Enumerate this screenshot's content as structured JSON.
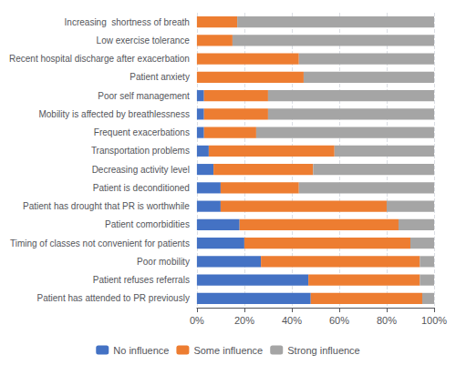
{
  "chart_data": {
    "type": "bar",
    "orientation": "horizontal",
    "stacked": true,
    "categories": [
      "Increasing  shortness of breath",
      "Low exercise tolerance",
      "Recent hospital discharge after exacerbation",
      "Patient anxiety",
      "Poor self management",
      "Mobility is affected by breathlessness",
      "Frequent exacerbations",
      "Transportation problems",
      "Decreasing activity level",
      "Patient is deconditioned",
      "Patient has drought that PR is worthwhile",
      "Patient comorbidities",
      "Timing of classes not convenient for patients",
      "Poor mobility",
      "Patient refuses referrals",
      "Patient has attended to PR previously"
    ],
    "series": [
      {
        "name": "No influence",
        "color": "#4472c4",
        "values": [
          0,
          0,
          0,
          0,
          3,
          3,
          3,
          5,
          7,
          10,
          10,
          18,
          20,
          27,
          47,
          48
        ]
      },
      {
        "name": "Some influence",
        "color": "#ed7d31",
        "values": [
          17,
          15,
          43,
          45,
          27,
          27,
          22,
          53,
          42,
          33,
          70,
          67,
          70,
          67,
          47,
          47
        ]
      },
      {
        "name": "Strong influence",
        "color": "#a5a5a5",
        "values": [
          83,
          85,
          57,
          55,
          70,
          70,
          75,
          42,
          51,
          57,
          20,
          15,
          10,
          6,
          6,
          5
        ]
      }
    ],
    "xlim": [
      0,
      100
    ],
    "xticks": [
      {
        "value": 0,
        "label": "0%"
      },
      {
        "value": 20,
        "label": "20%"
      },
      {
        "value": 40,
        "label": "40%"
      },
      {
        "value": 60,
        "label": "60%"
      },
      {
        "value": 80,
        "label": "80%"
      },
      {
        "value": 100,
        "label": "100%"
      }
    ],
    "grid": true,
    "legend": "bottom"
  }
}
